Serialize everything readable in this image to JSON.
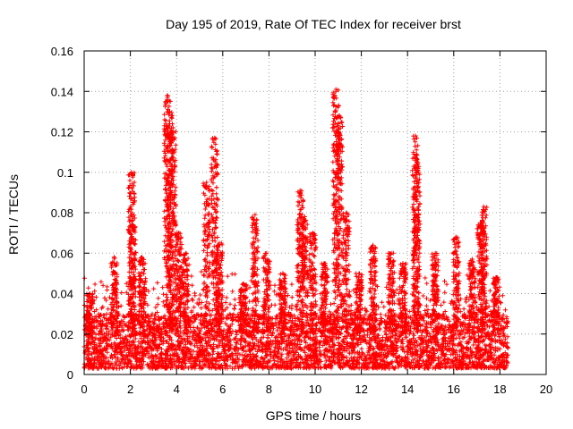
{
  "chart_data": {
    "type": "scatter",
    "title": "Day 195 of 2019, Rate Of TEC Index for receiver brst",
    "xlabel": "GPS time / hours",
    "ylabel": "ROTI / TECUs",
    "xlim": [
      0,
      20
    ],
    "ylim": [
      0,
      0.16
    ],
    "x_ticks": [
      "0",
      "2",
      "4",
      "6",
      "8",
      "10",
      "12",
      "14",
      "16",
      "18",
      "20"
    ],
    "y_ticks": [
      "0",
      "0.02",
      "0.04",
      "0.06",
      "0.08",
      "0.1",
      "0.12",
      "0.14",
      "0.16"
    ],
    "grid": true,
    "marker": "+",
    "marker_color": "#ff0000",
    "series": [
      {
        "name": "ROTI",
        "x_range": [
          0,
          18.35
        ],
        "baseline_range": [
          0.003,
          0.03
        ],
        "peaks": [
          {
            "x": 0.25,
            "y": 0.04
          },
          {
            "x": 1.3,
            "y": 0.058
          },
          {
            "x": 2.05,
            "y": 0.1
          },
          {
            "x": 2.1,
            "y": 0.074
          },
          {
            "x": 2.5,
            "y": 0.058
          },
          {
            "x": 3.6,
            "y": 0.138
          },
          {
            "x": 3.7,
            "y": 0.13
          },
          {
            "x": 3.85,
            "y": 0.122
          },
          {
            "x": 4.1,
            "y": 0.07
          },
          {
            "x": 4.4,
            "y": 0.06
          },
          {
            "x": 5.3,
            "y": 0.095
          },
          {
            "x": 5.65,
            "y": 0.117
          },
          {
            "x": 5.85,
            "y": 0.065
          },
          {
            "x": 6.9,
            "y": 0.045
          },
          {
            "x": 7.4,
            "y": 0.079
          },
          {
            "x": 7.9,
            "y": 0.06
          },
          {
            "x": 8.6,
            "y": 0.05
          },
          {
            "x": 9.35,
            "y": 0.091
          },
          {
            "x": 9.55,
            "y": 0.078
          },
          {
            "x": 9.9,
            "y": 0.07
          },
          {
            "x": 10.4,
            "y": 0.055
          },
          {
            "x": 10.9,
            "y": 0.141
          },
          {
            "x": 11.05,
            "y": 0.128
          },
          {
            "x": 11.35,
            "y": 0.08
          },
          {
            "x": 11.9,
            "y": 0.05
          },
          {
            "x": 12.5,
            "y": 0.064
          },
          {
            "x": 13.3,
            "y": 0.06
          },
          {
            "x": 13.8,
            "y": 0.055
          },
          {
            "x": 14.35,
            "y": 0.118
          },
          {
            "x": 14.4,
            "y": 0.105
          },
          {
            "x": 15.2,
            "y": 0.06
          },
          {
            "x": 16.1,
            "y": 0.068
          },
          {
            "x": 16.8,
            "y": 0.057
          },
          {
            "x": 17.3,
            "y": 0.083
          },
          {
            "x": 17.15,
            "y": 0.075
          },
          {
            "x": 17.85,
            "y": 0.048
          }
        ]
      }
    ]
  }
}
